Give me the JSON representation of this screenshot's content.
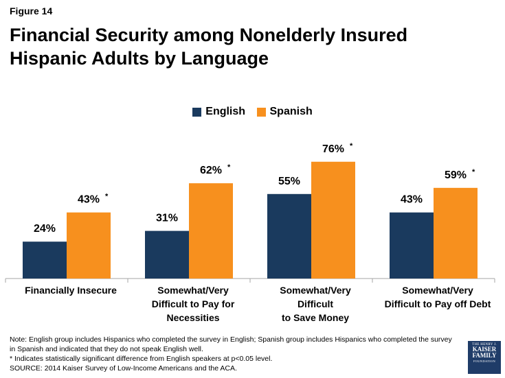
{
  "figure_label": "Figure 14",
  "title": "Financial Security among Nonelderly Insured Hispanic Adults by Language",
  "chart_data": {
    "type": "bar",
    "categories": [
      [
        "Financially Insecure"
      ],
      [
        "Somewhat/Very",
        "Difficult to Pay for",
        "Necessities"
      ],
      [
        "Somewhat/Very",
        "Difficult",
        "to Save Money"
      ],
      [
        "Somewhat/Very",
        "Difficult to Pay off Debt"
      ]
    ],
    "series": [
      {
        "name": "English",
        "color": "#1a3a5e",
        "values": [
          24,
          31,
          55,
          43
        ],
        "labels": [
          "24%",
          "31%",
          "55%",
          "43%"
        ],
        "significant": [
          false,
          false,
          false,
          false
        ]
      },
      {
        "name": "Spanish",
        "color": "#f7901e",
        "values": [
          43,
          62,
          76,
          59
        ],
        "labels": [
          "43%",
          "62%",
          "76%",
          "59%"
        ],
        "significant": [
          true,
          true,
          true,
          true
        ]
      }
    ],
    "significance_marker": "*",
    "ylim": [
      0,
      100
    ],
    "legend_position": "top-center",
    "grid": false
  },
  "footer": {
    "note": "Note: English group includes Hispanics who completed the survey in English; Spanish group includes Hispanics who completed the survey in Spanish and indicated that they do not speak English well.",
    "significance": "* Indicates statistically significant difference from English speakers at p<0.05 level.",
    "source": "SOURCE: 2014 Kaiser Survey of Low-Income Americans and the ACA."
  },
  "logo": {
    "line1": "THE HENRY J.",
    "line2": "KAISER",
    "line3": "FAMILY",
    "line4": "FOUNDATION"
  }
}
